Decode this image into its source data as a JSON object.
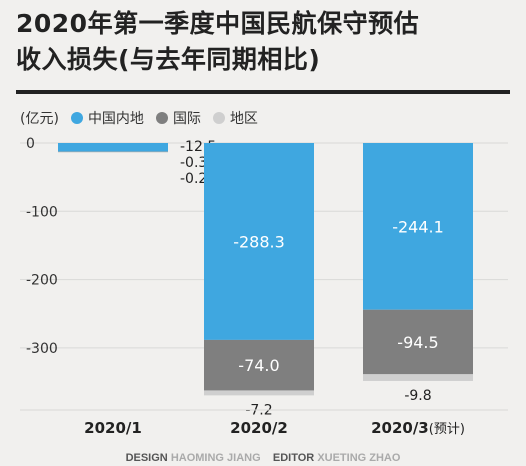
{
  "title_line1": "2020年第一季度中国民航保守预估",
  "title_line2": "收入损失(与去年同期相比)",
  "credit": {
    "design_label": "DESIGN",
    "design_name": "HAOMING JIANG",
    "editor_label": "EDITOR",
    "editor_name": "XUETING ZHAO"
  },
  "chart_data": {
    "type": "bar",
    "stacked": true,
    "unit_label": "(亿元)",
    "categories": [
      "2020/1",
      "2020/2",
      "2020/3"
    ],
    "category_notes": [
      "",
      "",
      "(预计)"
    ],
    "series": [
      {
        "name": "中国内地",
        "color": "#3fa7e0",
        "values": [
          -12.5,
          -288.3,
          -244.1
        ]
      },
      {
        "name": "国际",
        "color": "#7f7f7f",
        "values": [
          -0.3,
          -74.0,
          -94.5
        ]
      },
      {
        "name": "地区",
        "color": "#cfcfcf",
        "values": [
          -0.2,
          -7.2,
          -9.8
        ]
      }
    ],
    "value_labels": [
      [
        "-12.5",
        "-0.3",
        "-0.2"
      ],
      [
        "-288.3",
        "-74.0",
        "-7.2"
      ],
      [
        "-244.1",
        "-94.5",
        "-9.8"
      ]
    ],
    "y_ticks": [
      0,
      -100,
      -200,
      -300
    ],
    "ylim": [
      -390,
      0
    ],
    "grid": true,
    "legend_position": "top-left"
  }
}
